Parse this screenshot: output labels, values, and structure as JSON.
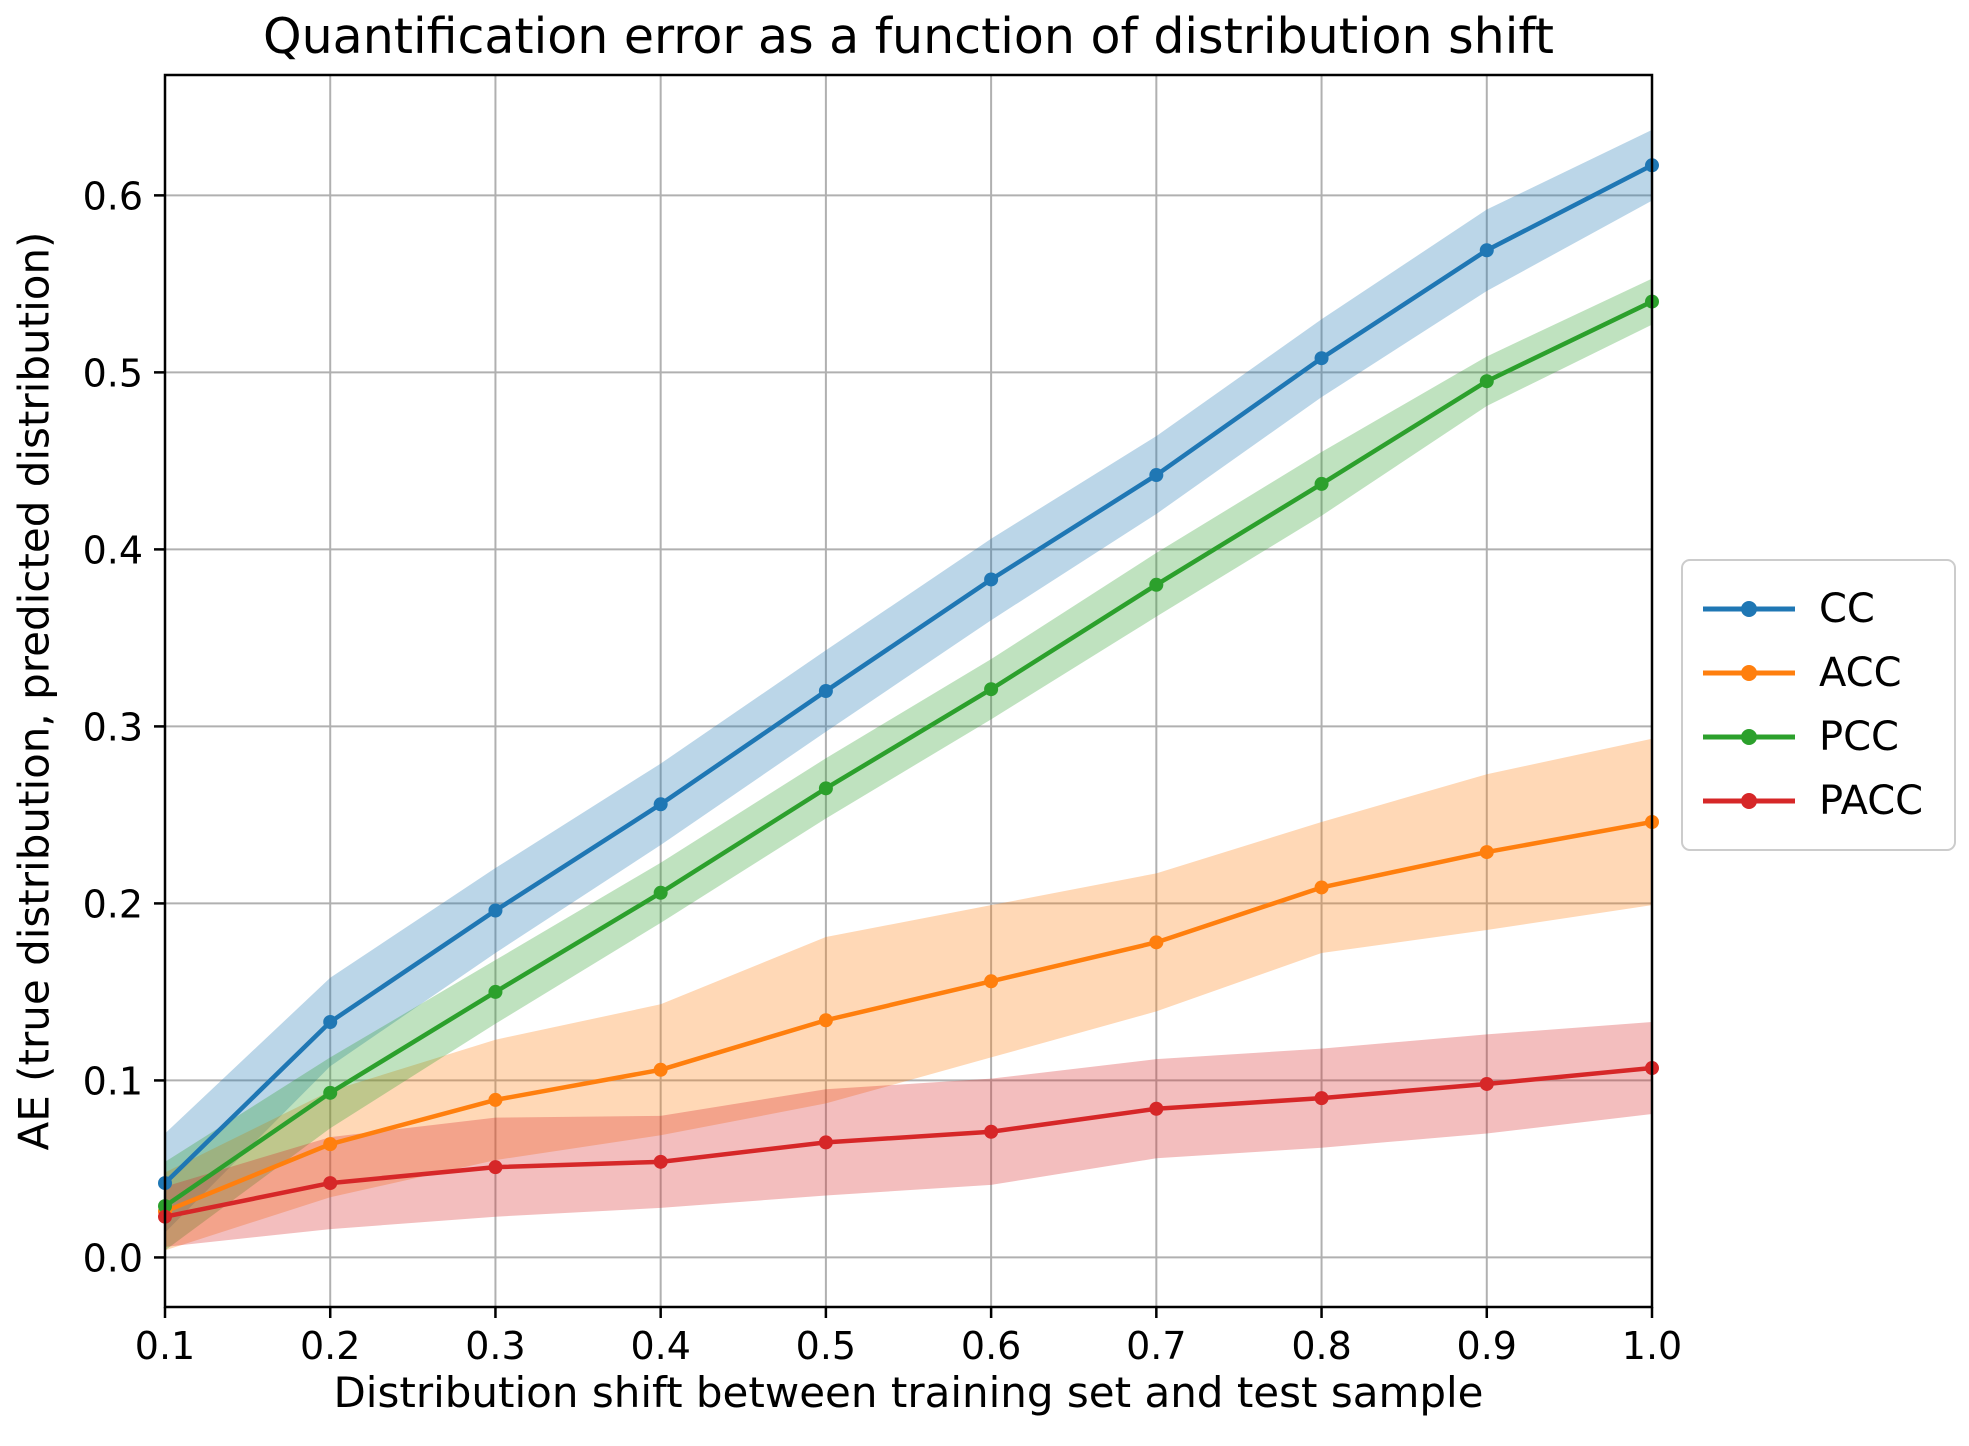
{
  "title": "Quantification error as a function of distribution shift",
  "chart_data": {
    "type": "line",
    "xlabel": "Distribution shift between training set and test sample",
    "ylabel": "AE (true distribution, predicted distribution)",
    "x": [
      0.1,
      0.2,
      0.3,
      0.4,
      0.5,
      0.6,
      0.7,
      0.8,
      0.9,
      1.0
    ],
    "series": [
      {
        "name": "CC",
        "color": "#1f77b4",
        "values": [
          0.042,
          0.133,
          0.196,
          0.256,
          0.32,
          0.383,
          0.442,
          0.508,
          0.569,
          0.617
        ],
        "band_halfwidth": [
          0.028,
          0.025,
          0.024,
          0.023,
          0.023,
          0.023,
          0.022,
          0.022,
          0.023,
          0.02
        ]
      },
      {
        "name": "ACC",
        "color": "#ff7f0e",
        "values": [
          0.026,
          0.064,
          0.089,
          0.106,
          0.134,
          0.156,
          0.178,
          0.209,
          0.229,
          0.246
        ],
        "band_halfwidth": [
          0.022,
          0.03,
          0.034,
          0.037,
          0.047,
          0.043,
          0.039,
          0.037,
          0.044,
          0.047
        ]
      },
      {
        "name": "PCC",
        "color": "#2ca02c",
        "values": [
          0.029,
          0.093,
          0.15,
          0.206,
          0.265,
          0.321,
          0.38,
          0.437,
          0.495,
          0.54
        ],
        "band_halfwidth": [
          0.025,
          0.02,
          0.018,
          0.017,
          0.017,
          0.017,
          0.018,
          0.018,
          0.014,
          0.013
        ]
      },
      {
        "name": "PACC",
        "color": "#d62728",
        "values": [
          0.023,
          0.042,
          0.051,
          0.054,
          0.065,
          0.071,
          0.084,
          0.09,
          0.098,
          0.107
        ],
        "band_halfwidth": [
          0.017,
          0.026,
          0.028,
          0.026,
          0.03,
          0.03,
          0.028,
          0.028,
          0.028,
          0.026
        ]
      }
    ],
    "xlim": [
      0.1,
      1.0
    ],
    "ylim": [
      -0.028,
      0.668
    ],
    "xticks": [
      "0.1",
      "0.2",
      "0.3",
      "0.4",
      "0.5",
      "0.6",
      "0.7",
      "0.8",
      "0.9",
      "1.0"
    ],
    "yticks": [
      "0.0",
      "0.1",
      "0.2",
      "0.3",
      "0.4",
      "0.5",
      "0.6"
    ],
    "grid": true,
    "band_alpha": 0.3,
    "grid_color": "#b0b0b0",
    "legend_position": "right-outside"
  }
}
